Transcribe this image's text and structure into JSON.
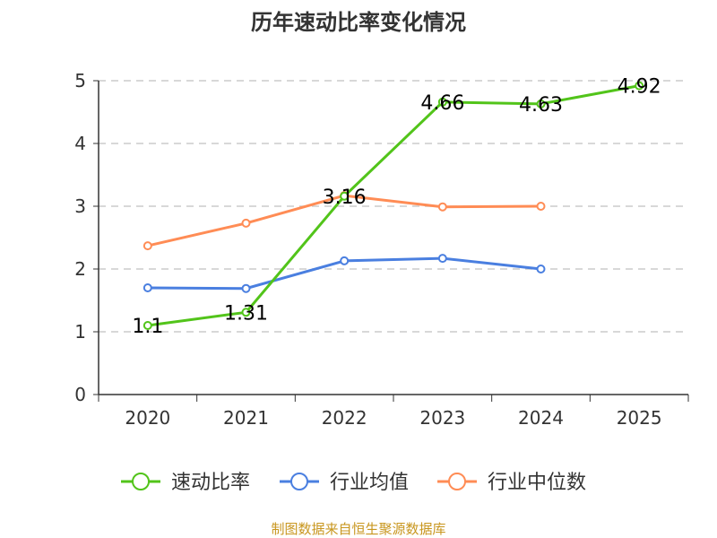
{
  "chart_data": {
    "type": "line",
    "title": "历年速动比率变化情况",
    "categories": [
      "2020",
      "2021",
      "2022",
      "2023",
      "2024",
      "2025"
    ],
    "ylim": [
      0,
      5
    ],
    "yticks": [
      "0",
      "1",
      "2",
      "3",
      "4",
      "5"
    ],
    "grid": true,
    "legend_position": "bottom",
    "series": [
      {
        "name": "速动比率",
        "color": "#52c41a",
        "values": [
          1.1,
          1.31,
          3.16,
          4.66,
          4.63,
          4.92
        ],
        "labels": [
          "1.1",
          "1.31",
          "3.16",
          "4.66",
          "4.63",
          "4.92"
        ]
      },
      {
        "name": "行业均值",
        "color": "#4a7fe0",
        "values": [
          1.7,
          1.69,
          2.13,
          2.17,
          2.0,
          null
        ]
      },
      {
        "name": "行业中位数",
        "color": "#ff8c55",
        "values": [
          2.37,
          2.73,
          3.17,
          2.99,
          3.0,
          null
        ]
      }
    ]
  },
  "source": "制图数据来自恒生聚源数据库"
}
